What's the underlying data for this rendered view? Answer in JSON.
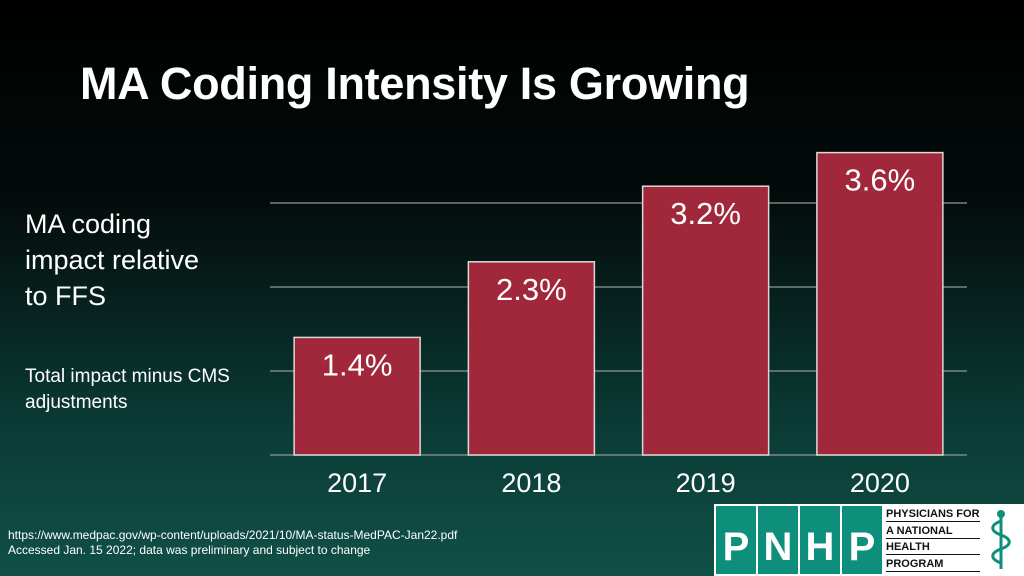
{
  "slide": {
    "title": "MA Coding Intensity Is Growing",
    "side_main": "MA coding impact relative to FFS",
    "side_sub": "Total impact minus CMS adjustments",
    "source_url": "https://www.medpac.gov/wp-content/uploads/2021/10/MA-status-MedPAC-Jan22.pdf",
    "source_note": "Accessed Jan. 15 2022; data was preliminary and subject to change"
  },
  "logo": {
    "letters": [
      "P",
      "N",
      "H",
      "P"
    ],
    "lines": [
      "PHYSICIANS FOR",
      "A NATIONAL",
      "HEALTH",
      "PROGRAM"
    ],
    "icon": "caduceus-icon"
  },
  "colors": {
    "bar": "#a0283a",
    "logo_green": "#0e8f7c"
  },
  "chart_data": {
    "type": "bar",
    "title": "",
    "xlabel": "",
    "ylabel": "",
    "categories": [
      "2017",
      "2018",
      "2019",
      "2020"
    ],
    "values": [
      1.4,
      2.3,
      3.2,
      3.6
    ],
    "data_labels": [
      "1.4%",
      "2.3%",
      "3.2%",
      "3.6%"
    ],
    "ylim": [
      0,
      4.5
    ],
    "gridlines": [
      0,
      1,
      2,
      3
    ],
    "legend": "none"
  }
}
